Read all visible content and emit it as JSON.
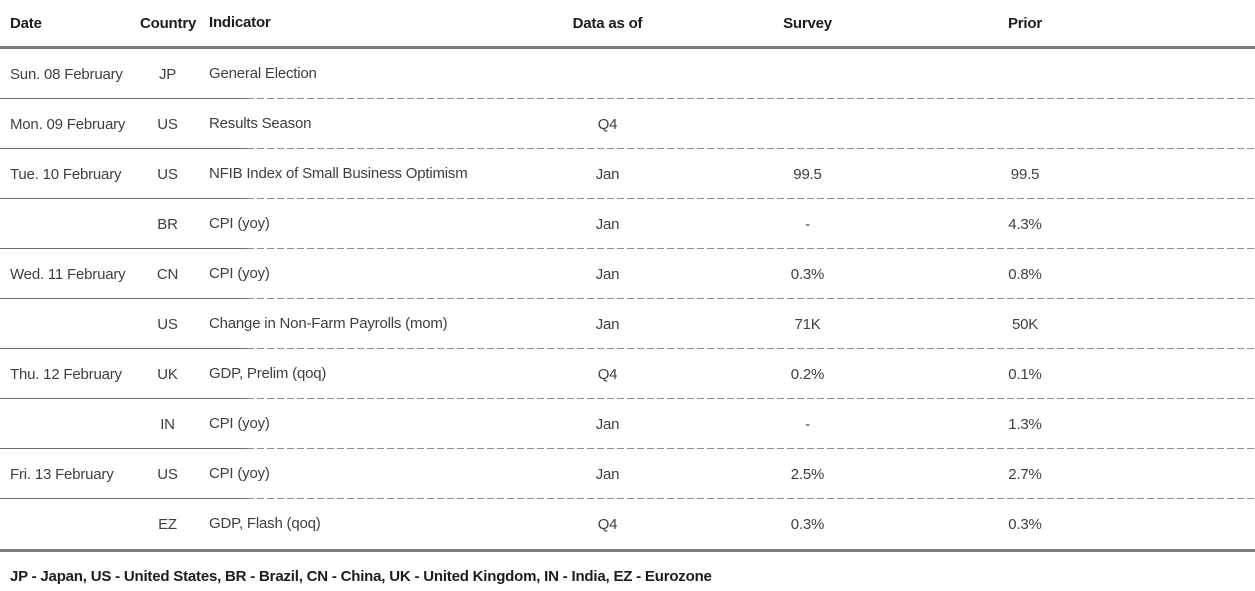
{
  "table": {
    "columns": {
      "date": "Date",
      "country": "Country",
      "indicator": "Indicator",
      "data_as_of": "Data as of",
      "survey": "Survey",
      "prior": "Prior"
    },
    "rows": [
      {
        "date": "Sun. 08 February",
        "country": "JP",
        "indicator": "General Election",
        "data_as_of": "",
        "survey": "",
        "prior": ""
      },
      {
        "date": "Mon. 09 February",
        "country": "US",
        "indicator": "Results Season",
        "data_as_of": "Q4",
        "survey": "",
        "prior": ""
      },
      {
        "date": "Tue. 10 February",
        "country": "US",
        "indicator": "NFIB Index of Small Business Optimism",
        "data_as_of": "Jan",
        "survey": "99.5",
        "prior": "99.5"
      },
      {
        "date": "",
        "country": "BR",
        "indicator": "CPI (yoy)",
        "data_as_of": "Jan",
        "survey": "-",
        "prior": "4.3%"
      },
      {
        "date": "Wed. 11 February",
        "country": "CN",
        "indicator": "CPI (yoy)",
        "data_as_of": "Jan",
        "survey": "0.3%",
        "prior": "0.8%"
      },
      {
        "date": "",
        "country": "US",
        "indicator": "Change in Non-Farm Payrolls (mom)",
        "data_as_of": "Jan",
        "survey": "71K",
        "prior": "50K"
      },
      {
        "date": "Thu. 12 February",
        "country": "UK",
        "indicator": "GDP, Prelim (qoq)",
        "data_as_of": "Q4",
        "survey": "0.2%",
        "prior": "0.1%"
      },
      {
        "date": "",
        "country": "IN",
        "indicator": "CPI (yoy)",
        "data_as_of": "Jan",
        "survey": "-",
        "prior": "1.3%"
      },
      {
        "date": "Fri. 13 February",
        "country": "US",
        "indicator": "CPI (yoy)",
        "data_as_of": "Jan",
        "survey": "2.5%",
        "prior": "2.7%"
      },
      {
        "date": "",
        "country": "EZ",
        "indicator": "GDP, Flash (qoq)",
        "data_as_of": "Q4",
        "survey": "0.3%",
        "prior": "0.3%"
      }
    ],
    "footnote": "JP - Japan, US - United States, BR - Brazil, CN - China, UK - United Kingdom, IN - India, EZ - Eurozone"
  },
  "colors": {
    "thick_rule": "#7d7d7d",
    "solid_separator": "#6e6e6e",
    "dashed_separator": "#8c8c8c",
    "header_text": "#1d1d1d",
    "body_text": "#3f3f3f"
  }
}
